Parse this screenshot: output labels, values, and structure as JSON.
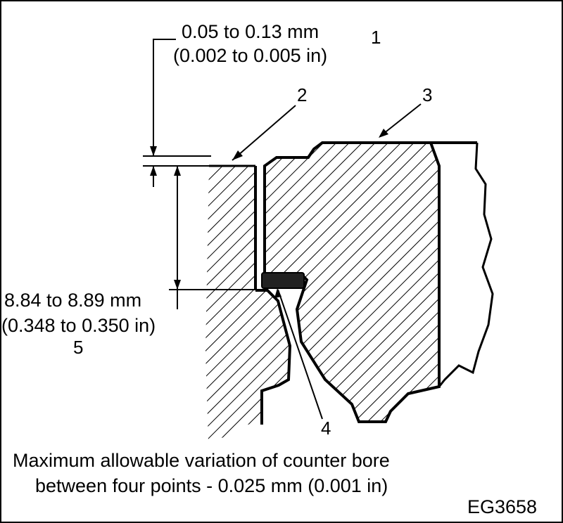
{
  "dimension_top": {
    "line1": "0.05 to 0.13 mm",
    "line2": "(0.002 to 0.005 in)",
    "callout": "1"
  },
  "dimension_side": {
    "line1": "8.84 to 8.89 mm",
    "line2": "(0.348 to 0.350 in)",
    "callout": "5"
  },
  "callouts": {
    "c2": "2",
    "c3": "3",
    "c4": "4"
  },
  "note": {
    "line1": "Maximum allowable variation of counter bore",
    "line2": "between four points - 0.025 mm (0.001 in)"
  },
  "figure_id": "EG3658"
}
